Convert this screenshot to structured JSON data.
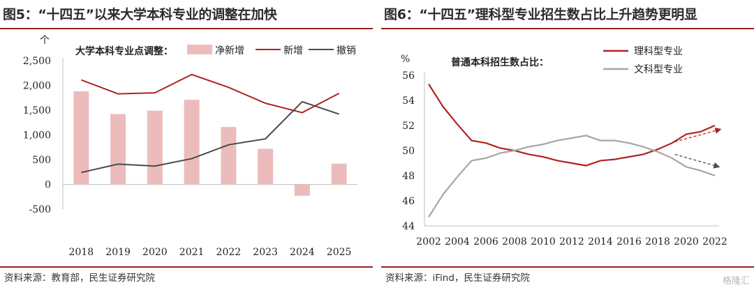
{
  "panel1": {
    "title": "图5：“十四五”以来大学本科专业的调整在加快",
    "source": "资料来源：教育部，民生证券研究院",
    "chart_data": {
      "type": "bar",
      "unit_label": "个",
      "inner_title": "大学本科专业点调整：",
      "categories": [
        "2018",
        "2019",
        "2020",
        "2021",
        "2022",
        "2023",
        "2024",
        "2025"
      ],
      "ylim": [
        -500,
        2500
      ],
      "yticks": [
        -500,
        0,
        500,
        1000,
        1500,
        2000,
        2500
      ],
      "ytick_labels": [
        "-500",
        "0",
        "500",
        "1,000",
        "1,500",
        "2,000",
        "2,500"
      ],
      "legend_placement": "top",
      "series": [
        {
          "name": "净新增",
          "kind": "bar",
          "color": "#ecbcbc",
          "values": [
            1880,
            1420,
            1490,
            1710,
            1160,
            720,
            -230,
            420
          ]
        },
        {
          "name": "新增",
          "kind": "line",
          "color": "#b22222",
          "values": [
            2110,
            1830,
            1850,
            2220,
            1960,
            1640,
            1450,
            1840
          ]
        },
        {
          "name": "撤销",
          "kind": "line",
          "color": "#4a4a4a",
          "values": [
            240,
            410,
            370,
            520,
            800,
            920,
            1670,
            1420
          ]
        }
      ]
    }
  },
  "panel2": {
    "title": "图6：“十四五”理科型专业招生数占比上升趋势更明显",
    "source": "资料来源：iFind，民生证券研究院",
    "watermark": "格隆汇",
    "chart_data": {
      "type": "line",
      "unit_label": "%",
      "inner_title": "普通本科招生数占比：",
      "x": [
        2002,
        2003,
        2004,
        2005,
        2006,
        2007,
        2008,
        2009,
        2010,
        2011,
        2012,
        2013,
        2014,
        2015,
        2016,
        2017,
        2018,
        2019,
        2020,
        2021,
        2022
      ],
      "xticks": [
        2002,
        2004,
        2006,
        2008,
        2010,
        2012,
        2014,
        2016,
        2018,
        2020,
        2022
      ],
      "ylim": [
        44,
        56
      ],
      "yticks": [
        44,
        46,
        48,
        50,
        52,
        54,
        56
      ],
      "legend_placement": "top-right",
      "series": [
        {
          "name": "理科型专业",
          "color": "#b22222",
          "values": [
            55.3,
            53.5,
            52.1,
            50.8,
            50.6,
            50.2,
            50.0,
            49.7,
            49.5,
            49.2,
            49.0,
            48.8,
            49.2,
            49.3,
            49.5,
            49.7,
            50.1,
            50.6,
            51.3,
            51.5,
            52.0
          ]
        },
        {
          "name": "文科型专业",
          "color": "#a6a6a6",
          "values": [
            44.7,
            46.5,
            47.9,
            49.2,
            49.4,
            49.8,
            50.0,
            50.3,
            50.5,
            50.8,
            51.0,
            51.2,
            50.8,
            50.8,
            50.6,
            50.3,
            49.9,
            49.4,
            48.7,
            48.4,
            48.0
          ]
        }
      ],
      "annotations": [
        {
          "kind": "dashed-arrow",
          "color": "#b22222",
          "from": [
            2019.2,
            50.7
          ],
          "to": [
            2022.4,
            51.7
          ]
        },
        {
          "kind": "dashed-arrow",
          "color": "#4a4a4a",
          "from": [
            2019.2,
            49.7
          ],
          "to": [
            2022.3,
            48.7
          ]
        }
      ]
    }
  }
}
